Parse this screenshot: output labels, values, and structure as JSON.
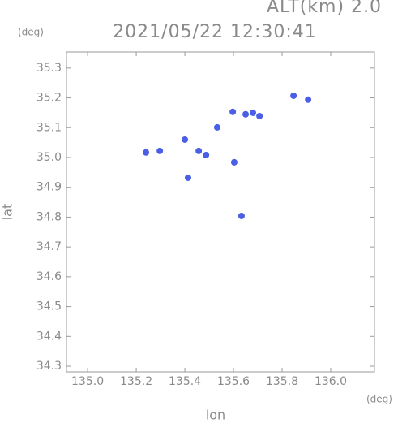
{
  "chart_data": {
    "type": "scatter",
    "title": "2021/05/22 12:30:41",
    "subtitle": "ALT(km) 2.0",
    "y_unit": "(deg)",
    "x_unit": "(deg)",
    "x_label": "lon",
    "y_label": "lat",
    "xlim": [
      134.913,
      136.18
    ],
    "ylim": [
      34.281,
      35.354
    ],
    "xticks": [
      {
        "value": 135.0,
        "label": "135.0"
      },
      {
        "value": 135.2,
        "label": "135.2"
      },
      {
        "value": 135.4,
        "label": "135.4"
      },
      {
        "value": 135.6,
        "label": "135.6"
      },
      {
        "value": 135.8,
        "label": "135.8"
      },
      {
        "value": 136.0,
        "label": "136.0"
      }
    ],
    "yticks": [
      34.3,
      34.4,
      34.5,
      34.6,
      34.7,
      34.8,
      34.9,
      {
        "value": 35.0,
        "label": "35.0"
      },
      35.1,
      35.2,
      35.3
    ],
    "grid": false,
    "series": [
      {
        "color": "#4a5ee6",
        "x": [
          135.847,
          135.907,
          135.533,
          135.597,
          135.65,
          135.68,
          135.707,
          135.4,
          135.487,
          135.457,
          135.603,
          135.24,
          135.297,
          135.413,
          135.633
        ],
        "values": [
          35.207,
          35.194,
          35.101,
          35.153,
          35.145,
          35.15,
          35.139,
          35.06,
          35.008,
          35.022,
          34.984,
          35.017,
          35.022,
          34.932,
          34.804
        ]
      }
    ]
  }
}
